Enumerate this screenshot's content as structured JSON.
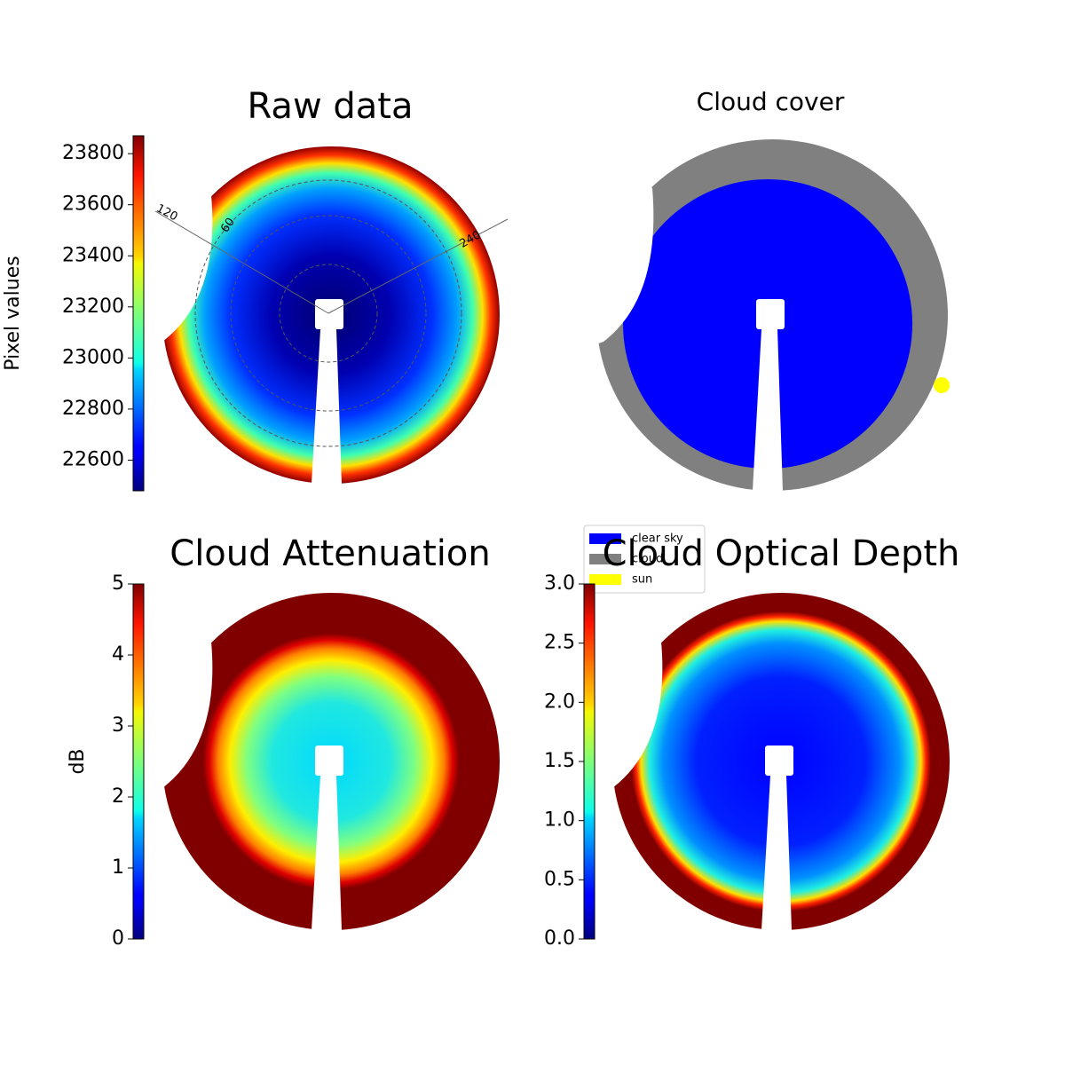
{
  "chart_data": [
    {
      "type": "image",
      "title": "Raw data",
      "colormap": "jet",
      "annotations": [
        "120",
        "60",
        "240"
      ],
      "colorbar": {
        "label": "Pixel values",
        "lim": [
          22480,
          23870
        ],
        "ticks": [
          22600,
          22800,
          23000,
          23200,
          23400,
          23600,
          23800
        ]
      }
    },
    {
      "type": "image",
      "title": "Cloud cover",
      "legend": [
        {
          "name": "clear sky",
          "color": "#0000ff"
        },
        {
          "name": "cloud",
          "color": "#808080"
        },
        {
          "name": "sun",
          "color": "#ffff00"
        }
      ]
    },
    {
      "type": "image",
      "title": "Cloud Attenuation",
      "colormap": "jet",
      "colorbar": {
        "label": "dB",
        "lim": [
          0,
          5
        ],
        "ticks": [
          0,
          1,
          2,
          3,
          4,
          5
        ]
      }
    },
    {
      "type": "image",
      "title": "Cloud Optical Depth",
      "colormap": "jet",
      "colorbar": {
        "lim": [
          0,
          3
        ],
        "ticks": [
          {
            "value": 0,
            "label": "0.0"
          },
          0.5,
          {
            "value": 1,
            "label": "1.0"
          },
          1.5,
          {
            "value": 2,
            "label": "2.0"
          },
          2.5,
          {
            "value": 3,
            "label": "3.0"
          }
        ]
      }
    }
  ]
}
